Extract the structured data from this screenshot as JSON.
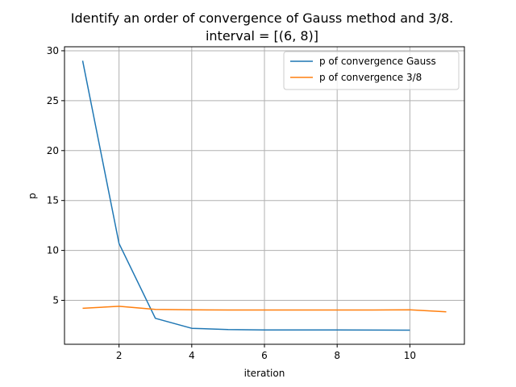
{
  "chart_data": {
    "type": "line",
    "title_line1": "Identify an order of convergence of Gauss method and 3/8.",
    "title_line2": "interval = [(6, 8)]",
    "xlabel": "iteration",
    "ylabel": "p",
    "xlim": [
      0.5,
      11.5
    ],
    "ylim": [
      0.6,
      30.4
    ],
    "xticks": [
      2,
      4,
      6,
      8,
      10
    ],
    "yticks": [
      5,
      10,
      15,
      20,
      25,
      30
    ],
    "grid": true,
    "legend_position": "top-right",
    "series": [
      {
        "name": "p of convergence Gauss",
        "color": "#1f77b4",
        "x": [
          1,
          2,
          3,
          4,
          5,
          6,
          7,
          8,
          9,
          10
        ],
        "y": [
          29.0,
          10.7,
          3.2,
          2.2,
          2.08,
          2.04,
          2.03,
          2.03,
          2.02,
          2.01
        ]
      },
      {
        "name": "p of convergence 3/8",
        "color": "#ff7f0e",
        "x": [
          1,
          2,
          3,
          4,
          5,
          6,
          7,
          8,
          9,
          10,
          11
        ],
        "y": [
          4.2,
          4.4,
          4.1,
          4.05,
          4.03,
          4.03,
          4.03,
          4.03,
          4.03,
          4.05,
          3.85
        ]
      }
    ]
  }
}
